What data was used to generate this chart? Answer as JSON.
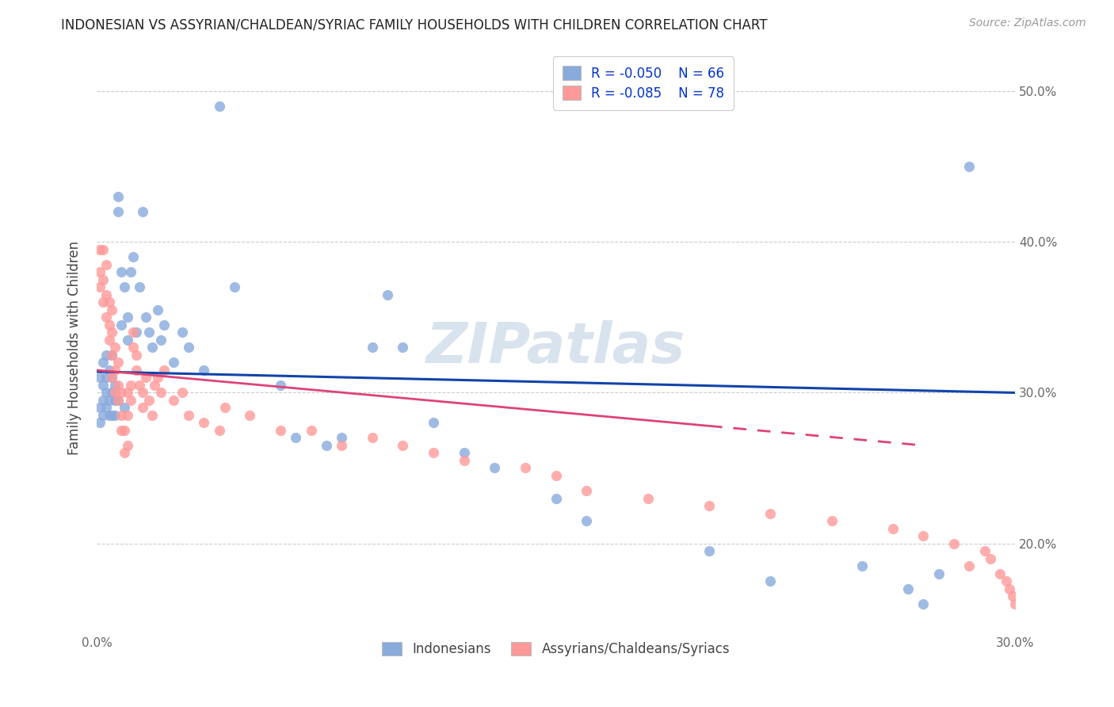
{
  "title": "INDONESIAN VS ASSYRIAN/CHALDEAN/SYRIAC FAMILY HOUSEHOLDS WITH CHILDREN CORRELATION CHART",
  "source": "Source: ZipAtlas.com",
  "ylabel": "Family Households with Children",
  "xlim": [
    0.0,
    0.3
  ],
  "ylim": [
    0.14,
    0.52
  ],
  "xticks": [
    0.0,
    0.05,
    0.1,
    0.15,
    0.2,
    0.25,
    0.3
  ],
  "yticks": [
    0.2,
    0.3,
    0.4,
    0.5
  ],
  "ytick_labels": [
    "20.0%",
    "30.0%",
    "40.0%",
    "50.0%"
  ],
  "xtick_labels": [
    "0.0%",
    "",
    "",
    "",
    "",
    "",
    "30.0%"
  ],
  "legend_r1": "-0.050",
  "legend_n1": "66",
  "legend_r2": "-0.085",
  "legend_n2": "78",
  "color_blue": "#88AADD",
  "color_pink": "#FF9999",
  "color_line_blue": "#1144AA",
  "color_line_pink": "#DD4477",
  "watermark": "ZIPatlas",
  "indonesian_x": [
    0.001,
    0.001,
    0.001,
    0.002,
    0.002,
    0.002,
    0.002,
    0.003,
    0.003,
    0.003,
    0.003,
    0.004,
    0.004,
    0.004,
    0.005,
    0.005,
    0.005,
    0.005,
    0.006,
    0.006,
    0.006,
    0.007,
    0.007,
    0.007,
    0.008,
    0.008,
    0.009,
    0.009,
    0.01,
    0.01,
    0.011,
    0.012,
    0.013,
    0.014,
    0.015,
    0.016,
    0.017,
    0.018,
    0.02,
    0.021,
    0.022,
    0.025,
    0.028,
    0.03,
    0.035,
    0.04,
    0.045,
    0.06,
    0.065,
    0.075,
    0.08,
    0.09,
    0.095,
    0.1,
    0.11,
    0.12,
    0.13,
    0.15,
    0.16,
    0.2,
    0.22,
    0.25,
    0.265,
    0.27,
    0.275,
    0.285
  ],
  "indonesian_y": [
    0.31,
    0.29,
    0.28,
    0.305,
    0.295,
    0.32,
    0.285,
    0.3,
    0.31,
    0.29,
    0.325,
    0.285,
    0.315,
    0.295,
    0.3,
    0.31,
    0.285,
    0.325,
    0.295,
    0.285,
    0.305,
    0.42,
    0.43,
    0.295,
    0.38,
    0.345,
    0.37,
    0.29,
    0.35,
    0.335,
    0.38,
    0.39,
    0.34,
    0.37,
    0.42,
    0.35,
    0.34,
    0.33,
    0.355,
    0.335,
    0.345,
    0.32,
    0.34,
    0.33,
    0.315,
    0.49,
    0.37,
    0.305,
    0.27,
    0.265,
    0.27,
    0.33,
    0.365,
    0.33,
    0.28,
    0.26,
    0.25,
    0.23,
    0.215,
    0.195,
    0.175,
    0.185,
    0.17,
    0.16,
    0.18,
    0.45
  ],
  "assyrian_x": [
    0.001,
    0.001,
    0.001,
    0.002,
    0.002,
    0.002,
    0.003,
    0.003,
    0.003,
    0.004,
    0.004,
    0.004,
    0.005,
    0.005,
    0.005,
    0.005,
    0.006,
    0.006,
    0.006,
    0.007,
    0.007,
    0.007,
    0.008,
    0.008,
    0.008,
    0.009,
    0.009,
    0.01,
    0.01,
    0.01,
    0.011,
    0.011,
    0.012,
    0.012,
    0.013,
    0.013,
    0.014,
    0.015,
    0.015,
    0.016,
    0.017,
    0.018,
    0.019,
    0.02,
    0.021,
    0.022,
    0.025,
    0.028,
    0.03,
    0.035,
    0.04,
    0.042,
    0.05,
    0.06,
    0.07,
    0.08,
    0.09,
    0.1,
    0.11,
    0.12,
    0.14,
    0.15,
    0.16,
    0.18,
    0.2,
    0.22,
    0.24,
    0.26,
    0.27,
    0.28,
    0.285,
    0.29,
    0.292,
    0.295,
    0.297,
    0.298,
    0.299,
    0.3
  ],
  "assyrian_y": [
    0.395,
    0.38,
    0.37,
    0.375,
    0.36,
    0.395,
    0.385,
    0.365,
    0.35,
    0.335,
    0.345,
    0.36,
    0.31,
    0.325,
    0.34,
    0.355,
    0.3,
    0.315,
    0.33,
    0.295,
    0.305,
    0.32,
    0.285,
    0.275,
    0.3,
    0.26,
    0.275,
    0.285,
    0.265,
    0.3,
    0.305,
    0.295,
    0.33,
    0.34,
    0.315,
    0.325,
    0.305,
    0.29,
    0.3,
    0.31,
    0.295,
    0.285,
    0.305,
    0.31,
    0.3,
    0.315,
    0.295,
    0.3,
    0.285,
    0.28,
    0.275,
    0.29,
    0.285,
    0.275,
    0.275,
    0.265,
    0.27,
    0.265,
    0.26,
    0.255,
    0.25,
    0.245,
    0.235,
    0.23,
    0.225,
    0.22,
    0.215,
    0.21,
    0.205,
    0.2,
    0.185,
    0.195,
    0.19,
    0.18,
    0.175,
    0.17,
    0.165,
    0.16
  ]
}
